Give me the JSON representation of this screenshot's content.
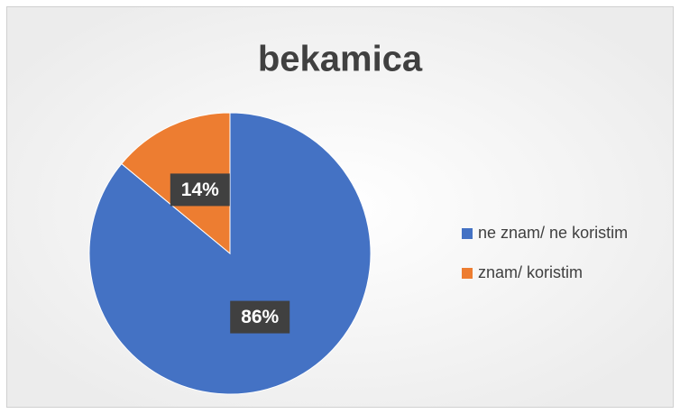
{
  "chart_data": {
    "type": "pie",
    "title": "bekamica",
    "categories": [
      "ne znam/ ne koristim",
      "znam/ koristim"
    ],
    "values": [
      86,
      14
    ],
    "value_labels": [
      "86%",
      "14%"
    ],
    "colors": [
      "#4472c4",
      "#ed7d31"
    ],
    "legend": "right"
  }
}
